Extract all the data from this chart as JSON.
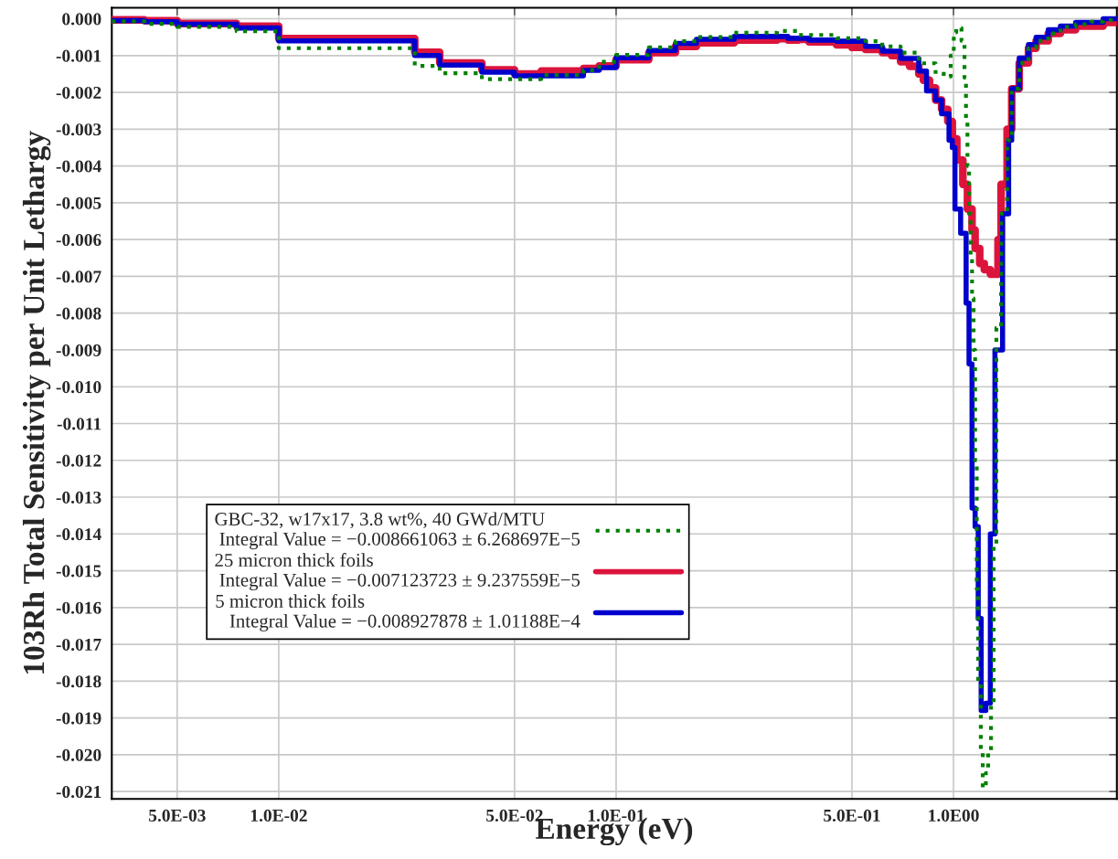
{
  "chart_data": {
    "type": "step",
    "xlabel": "Energy (eV)",
    "ylabel": "103Rh Total Sensitivity per Unit Lethargy",
    "log": "x",
    "grid": true,
    "legend": "bottom left",
    "xlim": [
      0.0032,
      3.05
    ],
    "ylim": [
      -0.0212,
      0.0003
    ],
    "xticks": [
      {
        "value": 0.005,
        "label": "5.0E-03"
      },
      {
        "value": 0.01,
        "label": "1.0E-02"
      },
      {
        "value": 0.05,
        "label": "5.0E-02"
      },
      {
        "value": 0.1,
        "label": "1.0E-01"
      },
      {
        "value": 0.5,
        "label": "5.0E-01"
      },
      {
        "value": 1,
        "label": "1.0E00"
      }
    ],
    "yticks": [
      {
        "value": 0,
        "label": "0.000"
      },
      {
        "value": -0.001,
        "label": "-0.001"
      },
      {
        "value": -0.002,
        "label": "-0.002"
      },
      {
        "value": -0.003,
        "label": "-0.003"
      },
      {
        "value": -0.004,
        "label": "-0.004"
      },
      {
        "value": -0.005,
        "label": "-0.005"
      },
      {
        "value": -0.006,
        "label": "-0.006"
      },
      {
        "value": -0.007,
        "label": "-0.007"
      },
      {
        "value": -0.008,
        "label": "-0.008"
      },
      {
        "value": -0.009,
        "label": "-0.009"
      },
      {
        "value": -0.01,
        "label": "-0.010"
      },
      {
        "value": -0.011,
        "label": "-0.011"
      },
      {
        "value": -0.012,
        "label": "-0.012"
      },
      {
        "value": -0.013,
        "label": "-0.013"
      },
      {
        "value": -0.014,
        "label": "-0.014"
      },
      {
        "value": -0.015,
        "label": "-0.015"
      },
      {
        "value": -0.016,
        "label": "-0.016"
      },
      {
        "value": -0.017,
        "label": "-0.017"
      },
      {
        "value": -0.018,
        "label": "-0.018"
      },
      {
        "value": -0.019,
        "label": "-0.019"
      },
      {
        "value": -0.02,
        "label": "-0.020"
      },
      {
        "value": -0.021,
        "label": "-0.021"
      }
    ],
    "series": [
      {
        "name": "GBC-32, w17x17, 3.8 wt%, 40 GWd/MTU\n Integral Value = −0.008661063 ± 6.268697E−5",
        "color": "#008000",
        "line_style": "dotted",
        "x": [
          0.0032,
          0.004,
          0.005,
          0.0075,
          0.01,
          0.0253,
          0.03,
          0.04,
          0.06,
          0.08,
          0.089,
          0.1,
          0.125,
          0.15,
          0.173,
          0.224,
          0.3,
          0.347,
          0.45,
          0.548,
          0.615,
          0.697,
          0.789,
          0.885,
          0.962,
          0.981,
          1.002,
          1.019,
          1.056,
          1.078,
          1.089,
          1.1,
          1.112,
          1.124,
          1.135,
          1.147,
          1.159,
          1.172,
          1.184,
          1.205,
          1.221,
          1.247,
          1.267,
          1.292,
          1.315,
          1.34,
          1.384,
          1.442,
          1.488,
          1.566,
          1.668,
          1.757,
          1.909,
          2.075,
          2.302,
          2.555,
          2.778,
          3.05
        ],
        "values": [
          -7e-05,
          -0.00014,
          -0.00022,
          -0.00034,
          -0.0008,
          -0.00128,
          -0.00148,
          -0.00164,
          -0.00153,
          -0.0014,
          -0.00117,
          -0.00098,
          -0.00078,
          -0.00061,
          -0.0005,
          -0.00038,
          -0.00033,
          -0.00044,
          -0.00053,
          -0.00061,
          -0.00075,
          -0.00092,
          -0.00121,
          -0.0015,
          -0.00157,
          -0.001,
          -0.00037,
          -0.00025,
          -0.0006,
          -0.0016,
          -0.0028,
          -0.004,
          -0.0053,
          -0.0065,
          -0.0076,
          -0.009,
          -0.012,
          -0.0155,
          -0.018,
          -0.0199,
          -0.0209,
          -0.0205,
          -0.0199,
          -0.0186,
          -0.0143,
          -0.0084,
          -0.0053,
          -0.0033,
          -0.0019,
          -0.0012,
          -0.0008,
          -0.0006,
          -0.0004,
          -0.00022,
          -0.00015,
          -8e-05,
          -4e-05,
          -4e-05
        ]
      },
      {
        "name": "25 micron thick foils\n Integral Value = −0.007123723 ± 9.237559E−5",
        "color": "#dc143c",
        "line_style": "solid",
        "x": [
          0.0032,
          0.004,
          0.005,
          0.0075,
          0.01,
          0.0253,
          0.03,
          0.04,
          0.05,
          0.06,
          0.08,
          0.089,
          0.1,
          0.125,
          0.15,
          0.173,
          0.224,
          0.3,
          0.323,
          0.347,
          0.373,
          0.45,
          0.5,
          0.548,
          0.615,
          0.655,
          0.697,
          0.741,
          0.789,
          0.814,
          0.849,
          0.885,
          0.922,
          0.962,
          0.992,
          1.023,
          1.066,
          1.1,
          1.135,
          1.159,
          1.196,
          1.234,
          1.286,
          1.355,
          1.384,
          1.442,
          1.488,
          1.566,
          1.668,
          1.757,
          1.909,
          2.075,
          2.302,
          2.555,
          2.778,
          3.05
        ],
        "values": [
          -3e-05,
          -5e-05,
          -0.00013,
          -0.0002,
          -0.00054,
          -0.00091,
          -0.0012,
          -0.00139,
          -0.0015,
          -0.00142,
          -0.00135,
          -0.00128,
          -0.00111,
          -0.00092,
          -0.00075,
          -0.00065,
          -0.00058,
          -0.00054,
          -0.00058,
          -0.00056,
          -0.00063,
          -0.00071,
          -0.00078,
          -0.00083,
          -0.00092,
          -0.001,
          -0.00117,
          -0.00129,
          -0.0015,
          -0.00167,
          -0.00188,
          -0.00221,
          -0.00246,
          -0.00279,
          -0.00326,
          -0.00384,
          -0.0045,
          -0.00517,
          -0.00574,
          -0.00624,
          -0.00665,
          -0.00682,
          -0.00694,
          -0.006,
          -0.0045,
          -0.003,
          -0.0019,
          -0.0012,
          -0.0008,
          -0.0006,
          -0.0004,
          -0.0003,
          -0.0002,
          -0.0002,
          -0.0001,
          -0.0001
        ]
      },
      {
        "name": "5 micron thick foils\n   Integral Value = −0.008927878 ± 1.01188E−4",
        "color": "#0000cd",
        "line_style": "solid",
        "x": [
          0.0032,
          0.004,
          0.005,
          0.0075,
          0.01,
          0.0253,
          0.03,
          0.04,
          0.05,
          0.08,
          0.089,
          0.1,
          0.125,
          0.15,
          0.173,
          0.224,
          0.323,
          0.373,
          0.45,
          0.548,
          0.615,
          0.697,
          0.789,
          0.832,
          0.885,
          0.922,
          0.97,
          0.992,
          1.01,
          1.05,
          1.09,
          1.112,
          1.135,
          1.159,
          1.184,
          1.208,
          1.247,
          1.286,
          1.327,
          1.398,
          1.457,
          1.488,
          1.566,
          1.668,
          1.757,
          1.909,
          2.075,
          2.302,
          2.555,
          2.778,
          3.05
        ],
        "values": [
          -5e-05,
          -8e-05,
          -0.00015,
          -0.00025,
          -0.0006,
          -0.001,
          -0.00126,
          -0.00145,
          -0.00155,
          -0.0014,
          -0.00133,
          -0.00106,
          -0.00086,
          -0.00067,
          -0.00056,
          -0.00048,
          -0.00053,
          -0.00058,
          -0.00061,
          -0.00075,
          -0.00088,
          -0.00108,
          -0.00142,
          -0.00196,
          -0.00221,
          -0.00258,
          -0.0033,
          -0.0035,
          -0.00517,
          -0.00583,
          -0.00773,
          -0.00938,
          -0.0133,
          -0.0138,
          -0.0163,
          -0.0188,
          -0.0186,
          -0.014,
          -0.009,
          -0.0053,
          -0.0033,
          -0.0019,
          -0.00107,
          -0.0007,
          -0.0005,
          -0.0003,
          -0.0002,
          -0.0001,
          -0.0001,
          0,
          0
        ]
      }
    ]
  }
}
